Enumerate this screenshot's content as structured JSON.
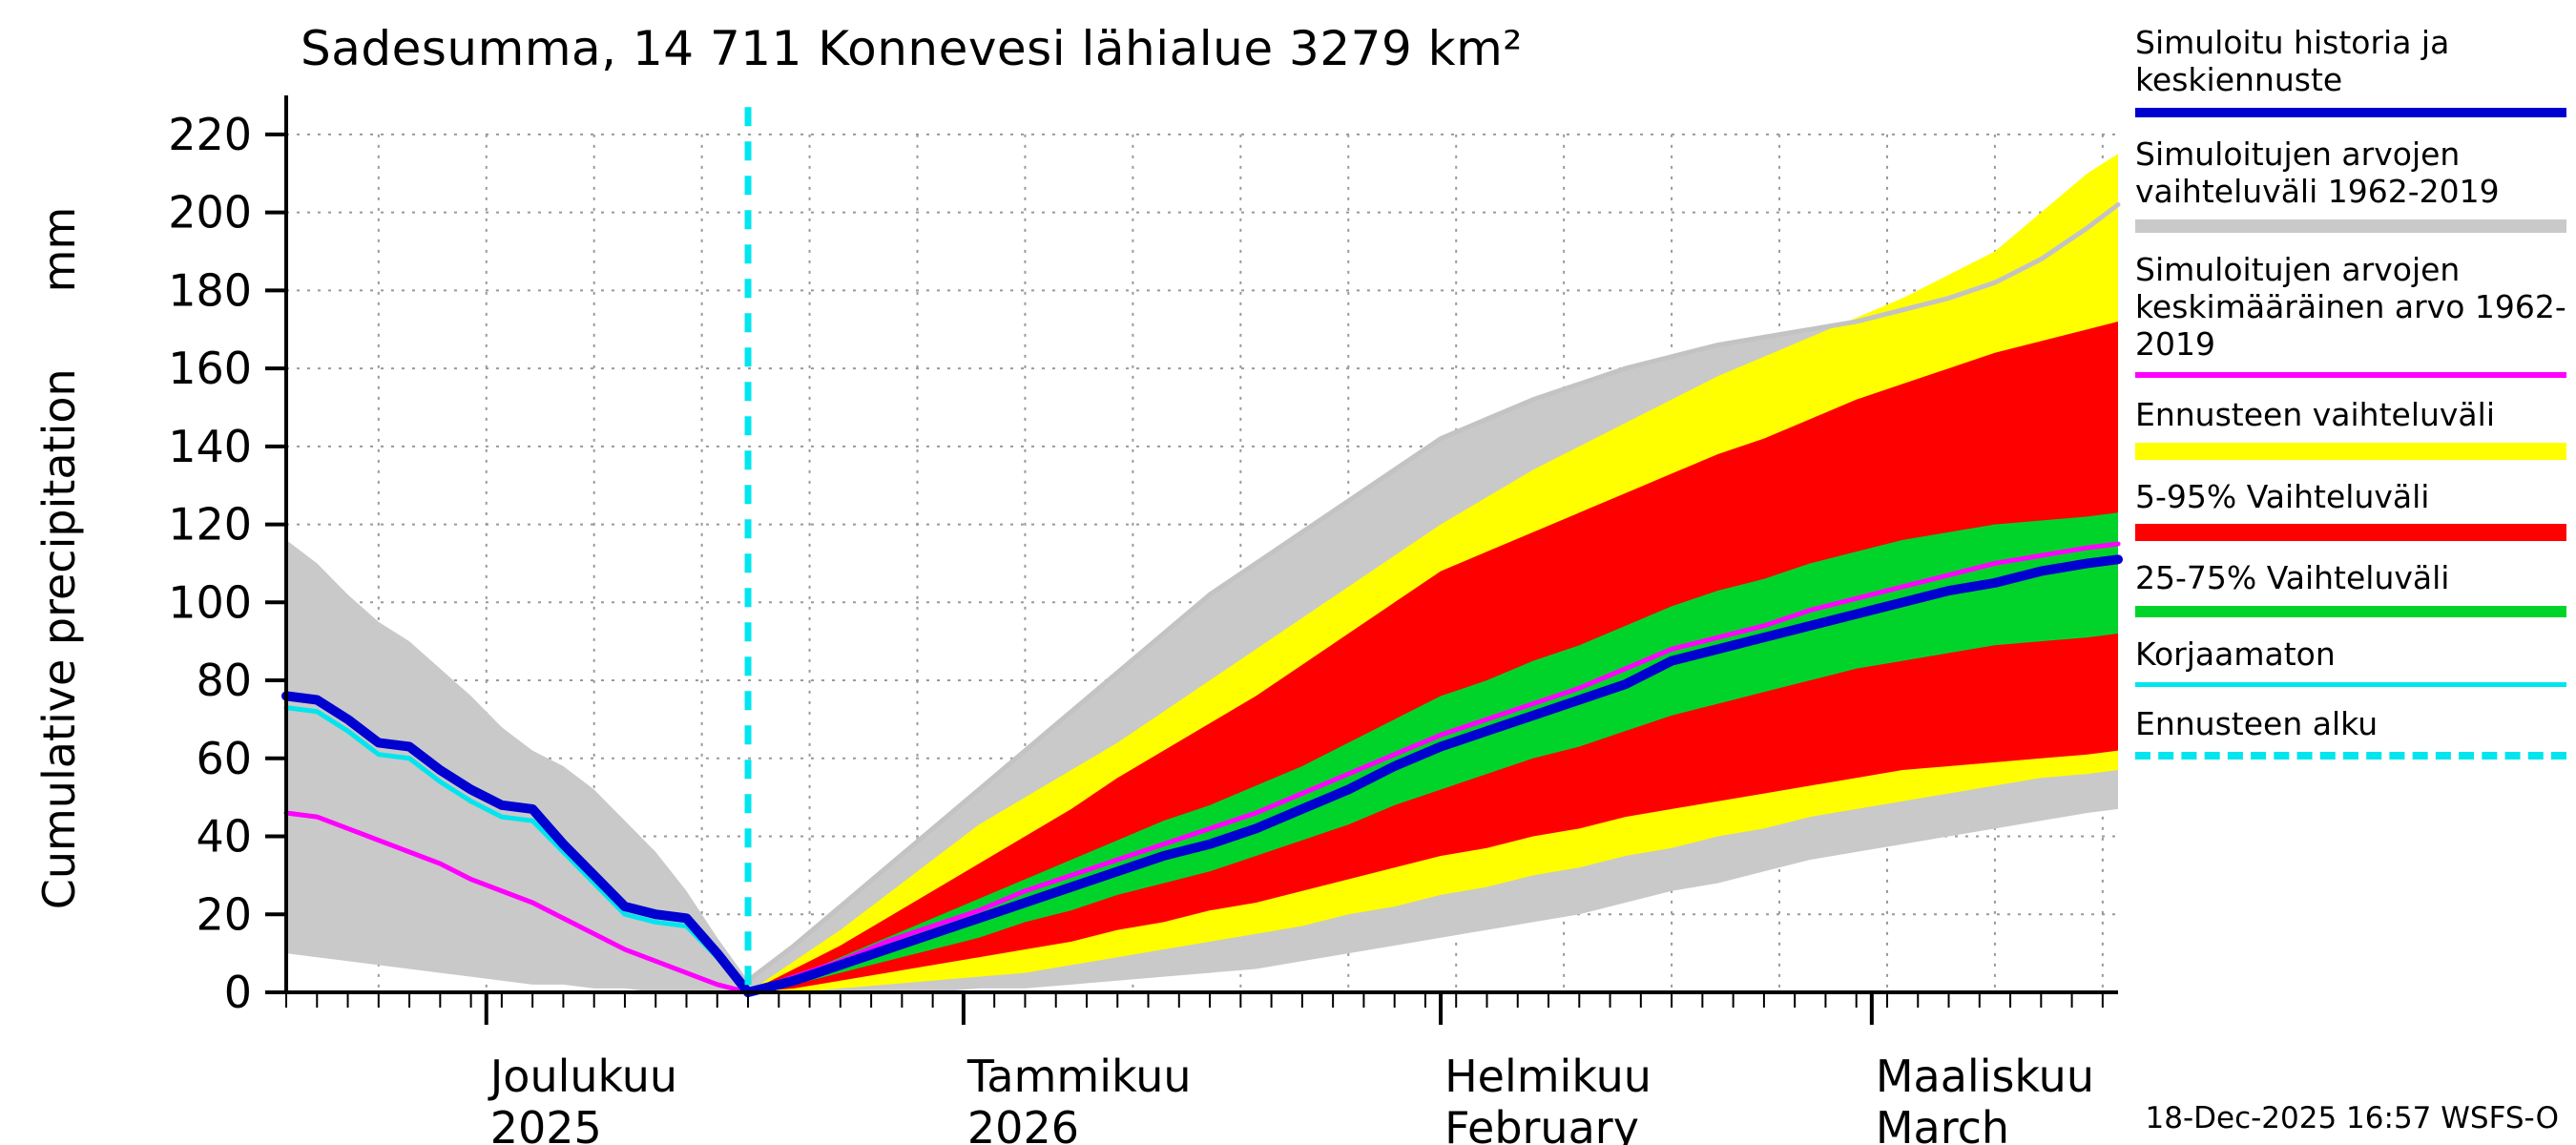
{
  "title": "Sadesumma, 14 711 Konnevesi lähialue 3279 km²",
  "datestamp": "18-Dec-2025 16:57 WSFS-O",
  "ylabel": "Cumulative precipitation",
  "y_unit": "mm",
  "chart_data": {
    "type": "area",
    "title": "Sadesumma, 14 711 Konnevesi lähialue 3279 km²",
    "ylabel": "Cumulative precipitation",
    "y_unit": "mm",
    "y_domain": [
      0,
      230
    ],
    "y_ticks": [
      0,
      20,
      40,
      60,
      80,
      100,
      120,
      140,
      160,
      180,
      200,
      220
    ],
    "x_domain": [
      0,
      119
    ],
    "x_minor_tick_step_days": 2,
    "gridline_days": [
      6,
      13,
      20,
      27,
      34,
      41,
      48,
      55,
      62,
      69,
      76,
      83,
      90,
      97,
      104,
      111,
      118
    ],
    "forecast_start_day": 30,
    "months": [
      {
        "label": "Joulukuu",
        "sub": "2025",
        "day": 13
      },
      {
        "label": "Tammikuu",
        "sub": "2026",
        "day": 44
      },
      {
        "label": "Helmikuu",
        "sub": "February",
        "day": 75
      },
      {
        "label": "Maaliskuu",
        "sub": "March",
        "day": 103
      }
    ],
    "bands": [
      {
        "name": "simulated-range-1962-2019",
        "color": "#c9c9c9",
        "x": [
          0,
          2,
          4,
          6,
          8,
          10,
          12,
          14,
          16,
          18,
          20,
          22,
          24,
          26,
          28,
          30,
          33,
          36,
          39,
          42,
          45,
          48,
          51,
          54,
          57,
          60,
          63,
          66,
          69,
          72,
          75,
          78,
          81,
          84,
          87,
          90,
          93,
          96,
          99,
          102,
          105,
          108,
          111,
          114,
          117,
          119
        ],
        "upper": [
          116,
          110,
          102,
          95,
          90,
          83,
          76,
          68,
          62,
          58,
          52,
          44,
          36,
          26,
          14,
          3,
          12,
          22,
          32,
          42,
          52,
          62,
          72,
          82,
          92,
          102,
          110,
          118,
          126,
          134,
          142,
          147,
          152,
          156,
          160,
          163,
          166,
          168,
          170,
          172,
          175,
          178,
          182,
          188,
          196,
          202
        ],
        "lower": [
          10,
          9,
          8,
          7,
          6,
          5,
          4,
          3,
          2,
          2,
          1,
          1,
          0,
          0,
          0,
          0,
          0,
          0,
          0,
          0,
          1,
          1,
          2,
          3,
          4,
          5,
          6,
          8,
          10,
          12,
          14,
          16,
          18,
          20,
          23,
          26,
          28,
          31,
          34,
          36,
          38,
          40,
          42,
          44,
          46,
          47
        ]
      },
      {
        "name": "forecast-range",
        "color": "#ffff00",
        "x": [
          30,
          33,
          36,
          39,
          42,
          45,
          48,
          51,
          54,
          57,
          60,
          63,
          66,
          69,
          72,
          75,
          78,
          81,
          84,
          87,
          90,
          93,
          96,
          99,
          102,
          105,
          108,
          111,
          114,
          117,
          119
        ],
        "upper": [
          0,
          8,
          16,
          25,
          34,
          43,
          50,
          57,
          64,
          72,
          80,
          88,
          96,
          104,
          112,
          120,
          127,
          134,
          140,
          146,
          152,
          158,
          163,
          168,
          173,
          178,
          184,
          190,
          200,
          210,
          215
        ],
        "lower": [
          0,
          0,
          1,
          2,
          3,
          4,
          5,
          7,
          9,
          11,
          13,
          15,
          17,
          20,
          22,
          25,
          27,
          30,
          32,
          35,
          37,
          40,
          42,
          45,
          47,
          49,
          51,
          53,
          55,
          56,
          57
        ]
      },
      {
        "name": "range-5-95",
        "color": "#fe0000",
        "x": [
          30,
          33,
          36,
          39,
          42,
          45,
          48,
          51,
          54,
          57,
          60,
          63,
          66,
          69,
          72,
          75,
          78,
          81,
          84,
          87,
          90,
          93,
          96,
          99,
          102,
          105,
          108,
          111,
          114,
          117,
          119
        ],
        "upper": [
          0,
          6,
          12,
          19,
          26,
          33,
          40,
          47,
          55,
          62,
          69,
          76,
          84,
          92,
          100,
          108,
          113,
          118,
          123,
          128,
          133,
          138,
          142,
          147,
          152,
          156,
          160,
          164,
          167,
          170,
          172
        ],
        "lower": [
          0,
          1,
          3,
          5,
          7,
          9,
          11,
          13,
          16,
          18,
          21,
          23,
          26,
          29,
          32,
          35,
          37,
          40,
          42,
          45,
          47,
          49,
          51,
          53,
          55,
          57,
          58,
          59,
          60,
          61,
          62
        ]
      },
      {
        "name": "range-25-75",
        "color": "#00d42a",
        "x": [
          30,
          33,
          36,
          39,
          42,
          45,
          48,
          51,
          54,
          57,
          60,
          63,
          66,
          69,
          72,
          75,
          78,
          81,
          84,
          87,
          90,
          93,
          96,
          99,
          102,
          105,
          108,
          111,
          114,
          117,
          119
        ],
        "upper": [
          0,
          4,
          9,
          14,
          19,
          24,
          29,
          34,
          39,
          44,
          48,
          53,
          58,
          64,
          70,
          76,
          80,
          85,
          89,
          94,
          99,
          103,
          106,
          110,
          113,
          116,
          118,
          120,
          121,
          122,
          123
        ],
        "lower": [
          0,
          2,
          5,
          8,
          11,
          14,
          18,
          21,
          25,
          28,
          31,
          35,
          39,
          43,
          48,
          52,
          56,
          60,
          63,
          67,
          71,
          74,
          77,
          80,
          83,
          85,
          87,
          89,
          90,
          91,
          92
        ]
      }
    ],
    "lines": [
      {
        "name": "simulated-range-edge",
        "color": "#c3c3c3",
        "width": 5,
        "x": [
          30,
          33,
          36,
          39,
          42,
          45,
          48,
          51,
          54,
          57,
          60,
          63,
          66,
          69,
          72,
          75,
          78,
          81,
          84,
          87,
          90,
          93,
          96,
          99,
          102,
          105,
          108,
          111,
          114,
          117,
          119
        ],
        "y": [
          3,
          12,
          22,
          32,
          42,
          52,
          62,
          72,
          82,
          92,
          102,
          110,
          118,
          126,
          134,
          142,
          147,
          152,
          156,
          160,
          163,
          166,
          168,
          170,
          172,
          175,
          178,
          182,
          188,
          196,
          202
        ]
      },
      {
        "name": "historical-mean-1962-2019",
        "color": "#ff00ff",
        "width": 5,
        "x": [
          0,
          2,
          4,
          6,
          8,
          10,
          12,
          14,
          16,
          18,
          20,
          22,
          24,
          26,
          28,
          30,
          33,
          36,
          39,
          42,
          45,
          48,
          51,
          54,
          57,
          60,
          63,
          66,
          69,
          72,
          75,
          78,
          81,
          84,
          87,
          90,
          93,
          96,
          99,
          102,
          105,
          108,
          111,
          114,
          117,
          119
        ],
        "y": [
          46,
          45,
          42,
          39,
          36,
          33,
          29,
          26,
          23,
          19,
          15,
          11,
          8,
          5,
          2,
          0,
          4,
          8,
          13,
          17,
          21,
          26,
          30,
          34,
          38,
          42,
          46,
          51,
          56,
          61,
          66,
          70,
          74,
          78,
          83,
          88,
          91,
          94,
          98,
          101,
          104,
          107,
          110,
          112,
          114,
          115
        ]
      },
      {
        "name": "korjaamaton",
        "color": "#00e5ee",
        "width": 5,
        "x": [
          0,
          2,
          4,
          6,
          8,
          10,
          12,
          14,
          16,
          18,
          20,
          22,
          24,
          26,
          28,
          30
        ],
        "y": [
          73,
          72,
          67,
          61,
          60,
          54,
          49,
          45,
          44,
          36,
          28,
          20,
          18,
          17,
          9,
          0
        ]
      },
      {
        "name": "simulated-history-and-median-forecast",
        "color": "#0000d0",
        "width": 10,
        "x": [
          0,
          2,
          4,
          6,
          8,
          10,
          12,
          14,
          16,
          18,
          20,
          22,
          24,
          26,
          28,
          30,
          33,
          36,
          39,
          42,
          45,
          48,
          51,
          54,
          57,
          60,
          63,
          66,
          69,
          72,
          75,
          78,
          81,
          84,
          87,
          90,
          93,
          96,
          99,
          102,
          105,
          108,
          111,
          114,
          117,
          119
        ],
        "y": [
          76,
          75,
          70,
          64,
          63,
          57,
          52,
          48,
          47,
          38,
          30,
          22,
          20,
          19,
          10,
          0,
          3,
          7,
          11,
          15,
          19,
          23,
          27,
          31,
          35,
          38,
          42,
          47,
          52,
          58,
          63,
          67,
          71,
          75,
          79,
          85,
          88,
          91,
          94,
          97,
          100,
          103,
          105,
          108,
          110,
          111
        ]
      }
    ],
    "vline": {
      "name": "forecast-start",
      "color": "#00e5ee",
      "day": 30,
      "width": 7,
      "dash": [
        20,
        16
      ]
    }
  },
  "legend": {
    "items": [
      {
        "name": "sim-history-median",
        "label": "Simuloitu historia ja keskiennuste",
        "color": "#0000d0",
        "height": 10,
        "style": "solid"
      },
      {
        "name": "sim-range",
        "label": "Simuloitujen arvojen vaihteluväli 1962-2019",
        "color": "#c9c9c9",
        "height": 14,
        "style": "solid"
      },
      {
        "name": "sim-mean",
        "label": "Simuloitujen arvojen keskimääräinen arvo 1962-2019",
        "color": "#ff00ff",
        "height": 6,
        "style": "solid"
      },
      {
        "name": "forecast-range",
        "label": "Ennusteen vaihteluväli",
        "color": "#ffff00",
        "height": 18,
        "style": "solid"
      },
      {
        "name": "range-5-95",
        "label": "5-95% Vaihteluväli",
        "color": "#fe0000",
        "height": 18,
        "style": "solid"
      },
      {
        "name": "range-25-75",
        "label": "25-75% Vaihteluväli",
        "color": "#00d42a",
        "height": 12,
        "style": "solid"
      },
      {
        "name": "korjaamaton",
        "label": "Korjaamaton",
        "color": "#00e5ee",
        "height": 5,
        "style": "solid"
      },
      {
        "name": "forecast-start",
        "label": "Ennusteen alku",
        "color": "#00e5ee",
        "height": 8,
        "style": "dashed"
      }
    ]
  }
}
